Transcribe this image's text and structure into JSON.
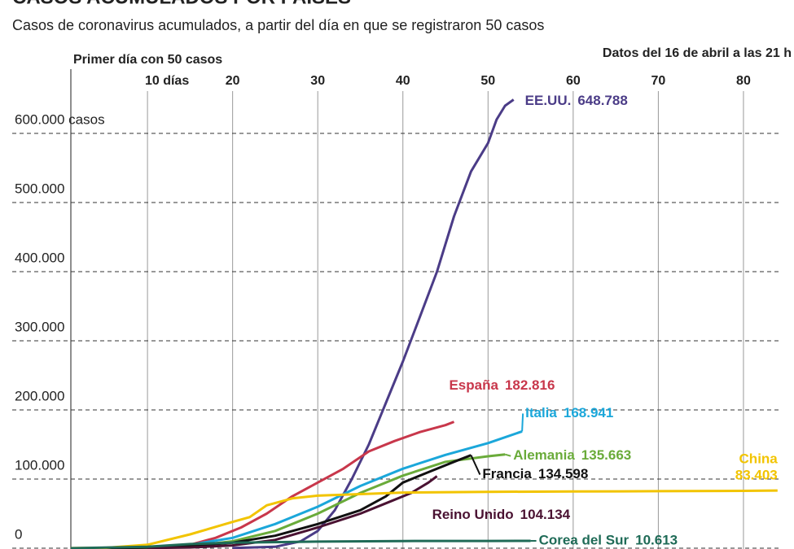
{
  "chart_data": {
    "type": "line",
    "title": "CASOS ACUMULADOS POR PAÍSES",
    "subtitle": "Casos de coronavirus acumulados, a partir del día en que se registraron 50 casos",
    "x_label": "Primer día con 50 casos",
    "note": "Datos del 16 de abril a las 21 h",
    "xlim": [
      1,
      84.5
    ],
    "xticks": [
      {
        "value": 10,
        "label": "10 días"
      },
      20,
      30,
      40,
      50,
      60,
      70,
      80
    ],
    "ylim": [
      0,
      660000
    ],
    "yticks": [
      0,
      {
        "value": 100000,
        "label": "100.000"
      },
      {
        "value": 200000,
        "label": "200.000"
      },
      {
        "value": 300000,
        "label": "300.000"
      },
      {
        "value": 400000,
        "label": "400.000"
      },
      {
        "value": 500000,
        "label": "500.000"
      },
      {
        "value": 600000,
        "label": "600.000 casos"
      }
    ],
    "grid": true,
    "series": [
      {
        "name": "EE.UU.",
        "color": "#4b3c87",
        "x": [
          20,
          25,
          28,
          30,
          32,
          34,
          36,
          38,
          40,
          42,
          44,
          46,
          48,
          50,
          51,
          52,
          53
        ],
        "values": [
          200,
          2000,
          10000,
          25000,
          55000,
          100000,
          150000,
          210000,
          270000,
          335000,
          400000,
          480000,
          545000,
          586000,
          620000,
          640000,
          648788
        ],
        "value_labels": [
          null,
          null,
          null,
          null,
          null,
          null,
          null,
          null,
          null,
          null,
          null,
          null,
          null,
          null,
          null,
          null,
          "648.788"
        ]
      },
      {
        "name": "España",
        "color": "#c8374b",
        "x": [
          5,
          10,
          15,
          18,
          21,
          24,
          27,
          30,
          33,
          36,
          39,
          42,
          45,
          46
        ],
        "values": [
          200,
          1000,
          5000,
          15000,
          30000,
          50000,
          75000,
          95000,
          115000,
          140000,
          155000,
          168000,
          178000,
          182816
        ],
        "value_labels": [
          null,
          null,
          null,
          null,
          null,
          null,
          null,
          null,
          null,
          null,
          null,
          null,
          null,
          "182.816"
        ]
      },
      {
        "name": "Italia",
        "color": "#1ba7da",
        "x": [
          5,
          10,
          15,
          20,
          25,
          30,
          35,
          40,
          45,
          50,
          54
        ],
        "values": [
          300,
          1500,
          5000,
          15000,
          35000,
          60000,
          90000,
          115000,
          135000,
          152000,
          168941
        ],
        "value_labels": [
          null,
          null,
          null,
          null,
          null,
          null,
          null,
          null,
          null,
          null,
          "168.941"
        ]
      },
      {
        "name": "Alemania",
        "color": "#6aab3a",
        "x": [
          5,
          10,
          15,
          20,
          25,
          30,
          35,
          40,
          45,
          50,
          52
        ],
        "values": [
          200,
          800,
          3000,
          10000,
          25000,
          50000,
          80000,
          105000,
          125000,
          133000,
          135663
        ],
        "value_labels": [
          null,
          null,
          null,
          null,
          null,
          null,
          null,
          null,
          null,
          null,
          "135.663"
        ]
      },
      {
        "name": "Francia",
        "color": "#111111",
        "x": [
          5,
          10,
          15,
          20,
          25,
          30,
          35,
          38,
          40,
          43,
          46,
          48
        ],
        "values": [
          200,
          800,
          3000,
          8000,
          18000,
          35000,
          55000,
          75000,
          95000,
          110000,
          125000,
          134598
        ],
        "value_labels": [
          null,
          null,
          null,
          null,
          null,
          null,
          null,
          null,
          null,
          null,
          null,
          "134.598"
        ]
      },
      {
        "name": "Reino Unido",
        "color": "#4a1232",
        "x": [
          10,
          15,
          20,
          25,
          30,
          35,
          38,
          41,
          43,
          44
        ],
        "values": [
          200,
          1000,
          4000,
          12000,
          30000,
          50000,
          65000,
          80000,
          95000,
          104134
        ],
        "value_labels": [
          null,
          null,
          null,
          null,
          null,
          null,
          null,
          null,
          null,
          "104.134"
        ]
      },
      {
        "name": "China",
        "color": "#f2c400",
        "x": [
          1,
          5,
          10,
          15,
          20,
          22,
          24,
          27,
          30,
          40,
          50,
          60,
          70,
          80,
          84
        ],
        "values": [
          60,
          500,
          5000,
          20000,
          38000,
          45000,
          62000,
          72000,
          76000,
          80500,
          81500,
          82000,
          82500,
          83000,
          83403
        ],
        "value_labels": [
          null,
          null,
          null,
          null,
          null,
          null,
          null,
          null,
          null,
          null,
          null,
          null,
          null,
          null,
          "83.403"
        ]
      },
      {
        "name": "Corea del Sur",
        "color": "#1f6b57",
        "x": [
          1,
          10,
          15,
          20,
          30,
          40,
          50,
          55
        ],
        "values": [
          50,
          2000,
          6000,
          8000,
          9500,
          10300,
          10500,
          10613
        ],
        "value_labels": [
          null,
          null,
          null,
          null,
          null,
          null,
          null,
          "10.613"
        ]
      }
    ]
  }
}
